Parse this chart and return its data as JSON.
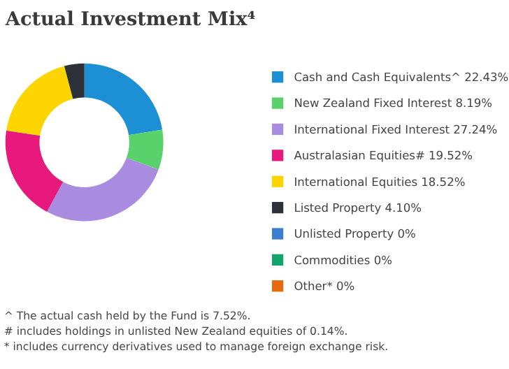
{
  "chart_data": {
    "type": "donut",
    "title": "Actual Investment Mix⁴",
    "categories": [
      "Cash and Cash Equivalents^",
      "New Zealand Fixed Interest",
      "International Fixed Interest",
      "Australasian Equities#",
      "International Equities",
      "Listed Property",
      "Unlisted Property",
      "Commodities",
      "Other*"
    ],
    "values": [
      22.43,
      8.19,
      27.24,
      19.52,
      18.52,
      4.1,
      0,
      0,
      0
    ],
    "value_labels": [
      "22.43%",
      "8.19%",
      "27.24%",
      "19.52%",
      "18.52%",
      "4.10%",
      "0%",
      "0%",
      "0%"
    ],
    "colors": [
      "#1d8fd4",
      "#5ad26c",
      "#a98be0",
      "#e8197c",
      "#fcd500",
      "#2c3237",
      "#3b7ed0",
      "#13a36b",
      "#e86a10"
    ],
    "legend": "right",
    "annotations": [
      "^ The actual cash held by the Fund is 7.52%.",
      "# includes holdings in unlisted New Zealand equities of 0.14%.",
      "* includes currency derivatives used to manage foreign exchange risk."
    ]
  }
}
